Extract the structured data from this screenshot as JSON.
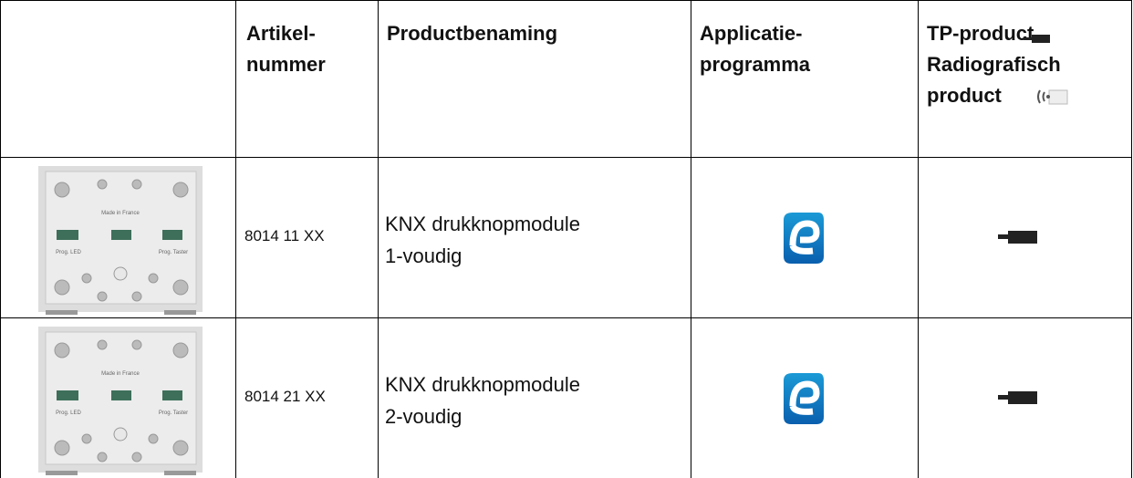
{
  "header": {
    "article": [
      "Artikel-",
      "nummer"
    ],
    "product": "Productbenaming",
    "application": [
      "Applicatie-",
      "programma"
    ],
    "type": [
      "TP-product",
      "Radiografisch",
      "product"
    ]
  },
  "rows": [
    {
      "device_labels": [
        "Made in France",
        "Prog. LED",
        "Prog. Taster"
      ],
      "article": "8014 11 XX",
      "product": [
        "KNX drukknopmodule",
        "1-voudig"
      ]
    },
    {
      "device_labels": [
        "Made in France",
        "Prog. LED",
        "Prog. Taster"
      ],
      "article": "8014 21 XX",
      "product": [
        "KNX drukknopmodule",
        "2-voudig"
      ]
    }
  ]
}
